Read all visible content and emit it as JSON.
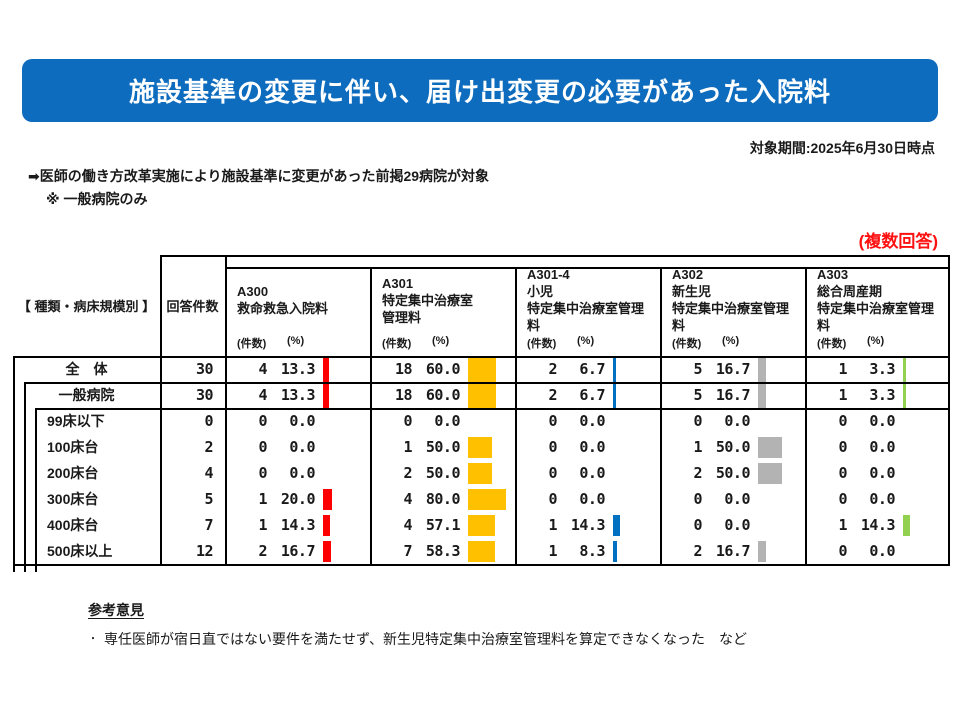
{
  "title": "施設基準の変更に伴い、届け出変更の必要があった入院料",
  "period_note": "対象期間:2025年6月30日時点",
  "lead_note": "➡医師の働き方改革実施により施設基準に変更があった前掲29病院が対象",
  "lead_subnote": "※ 一般病院のみ",
  "multi_answer_note": "(複数回答)",
  "colors": {
    "banner_bg": "#0d6cbe",
    "banner_text": "#ffffff",
    "note_red": "#ff1111",
    "border": "#000000",
    "bar_red": "#ff0000",
    "bar_yellow": "#ffc000",
    "bar_blue": "#0070c0",
    "bar_gray": "#b3b3b3",
    "bar_green": "#92d050"
  },
  "table": {
    "row_header_label": "【 種類・病床規模別 】",
    "count_col_label": "回答件数",
    "unit_count": "(件数)",
    "unit_pct": "(%)",
    "columns": [
      {
        "code": "A300",
        "name_lines": [
          "A300",
          "救命救急入院料"
        ],
        "bar_color": "#ff0000"
      },
      {
        "code": "A301",
        "name_lines": [
          "A301",
          "特定集中治療室",
          "管理料"
        ],
        "bar_color": "#ffc000"
      },
      {
        "code": "A301-4",
        "name_lines": [
          "A301-4",
          "小児",
          "特定集中治療室管理料"
        ],
        "bar_color": "#0070c0"
      },
      {
        "code": "A302",
        "name_lines": [
          "A302",
          "新生児",
          "特定集中治療室管理料"
        ],
        "bar_color": "#b3b3b3"
      },
      {
        "code": "A303",
        "name_lines": [
          "A303",
          "総合周産期",
          "特定集中治療室管理料"
        ],
        "bar_color": "#92d050"
      }
    ],
    "rows": [
      {
        "label": "全　体",
        "level": 0,
        "n": 30,
        "cells": [
          [
            4,
            13.3
          ],
          [
            18,
            60.0
          ],
          [
            2,
            6.7
          ],
          [
            5,
            16.7
          ],
          [
            1,
            3.3
          ]
        ]
      },
      {
        "label": "一般病院",
        "level": 1,
        "n": 30,
        "cells": [
          [
            4,
            13.3
          ],
          [
            18,
            60.0
          ],
          [
            2,
            6.7
          ],
          [
            5,
            16.7
          ],
          [
            1,
            3.3
          ]
        ]
      },
      {
        "label": "99床以下",
        "level": 2,
        "n": 0,
        "cells": [
          [
            0,
            0.0
          ],
          [
            0,
            0.0
          ],
          [
            0,
            0.0
          ],
          [
            0,
            0.0
          ],
          [
            0,
            0.0
          ]
        ]
      },
      {
        "label": "100床台",
        "level": 2,
        "n": 2,
        "cells": [
          [
            0,
            0.0
          ],
          [
            1,
            50.0
          ],
          [
            0,
            0.0
          ],
          [
            1,
            50.0
          ],
          [
            0,
            0.0
          ]
        ]
      },
      {
        "label": "200床台",
        "level": 2,
        "n": 4,
        "cells": [
          [
            0,
            0.0
          ],
          [
            2,
            50.0
          ],
          [
            0,
            0.0
          ],
          [
            2,
            50.0
          ],
          [
            0,
            0.0
          ]
        ]
      },
      {
        "label": "300床台",
        "level": 2,
        "n": 5,
        "cells": [
          [
            1,
            20.0
          ],
          [
            4,
            80.0
          ],
          [
            0,
            0.0
          ],
          [
            0,
            0.0
          ],
          [
            0,
            0.0
          ]
        ]
      },
      {
        "label": "400床台",
        "level": 2,
        "n": 7,
        "cells": [
          [
            1,
            14.3
          ],
          [
            4,
            57.1
          ],
          [
            1,
            14.3
          ],
          [
            0,
            0.0
          ],
          [
            1,
            14.3
          ]
        ]
      },
      {
        "label": "500床以上",
        "level": 2,
        "n": 12,
        "cells": [
          [
            2,
            16.7
          ],
          [
            7,
            58.3
          ],
          [
            1,
            8.3
          ],
          [
            2,
            16.7
          ],
          [
            0,
            0.0
          ]
        ]
      }
    ]
  },
  "chart_data": {
    "type": "table",
    "title": "施設基準の変更に伴い、届け出変更の必要があった入院料",
    "categories": [
      "全体",
      "一般病院",
      "99床以下",
      "100床台",
      "200床台",
      "300床台",
      "400床台",
      "500床以上"
    ],
    "respondent_counts": [
      30,
      30,
      0,
      2,
      4,
      5,
      7,
      12
    ],
    "series": [
      {
        "name": "A300 救命救急入院料",
        "counts": [
          4,
          4,
          0,
          0,
          0,
          1,
          1,
          2
        ],
        "percents": [
          13.3,
          13.3,
          0.0,
          0.0,
          0.0,
          20.0,
          14.3,
          16.7
        ]
      },
      {
        "name": "A301 特定集中治療室管理料",
        "counts": [
          18,
          18,
          0,
          1,
          2,
          4,
          4,
          7
        ],
        "percents": [
          60.0,
          60.0,
          0.0,
          50.0,
          50.0,
          80.0,
          57.1,
          58.3
        ]
      },
      {
        "name": "A301-4 小児特定集中治療室管理料",
        "counts": [
          2,
          2,
          0,
          0,
          0,
          0,
          1,
          1
        ],
        "percents": [
          6.7,
          6.7,
          0.0,
          0.0,
          0.0,
          0.0,
          14.3,
          8.3
        ]
      },
      {
        "name": "A302 新生児特定集中治療室管理料",
        "counts": [
          5,
          5,
          0,
          1,
          2,
          0,
          0,
          2
        ],
        "percents": [
          16.7,
          16.7,
          0.0,
          50.0,
          50.0,
          0.0,
          0.0,
          16.7
        ]
      },
      {
        "name": "A303 総合周産期特定集中治療室管理料",
        "counts": [
          1,
          1,
          0,
          0,
          0,
          0,
          1,
          0
        ],
        "percents": [
          3.3,
          3.3,
          0.0,
          0.0,
          0.0,
          0.0,
          14.3,
          0.0
        ]
      }
    ]
  },
  "footer": {
    "heading": "参考意見",
    "marker": "・",
    "bullet": "専任医師が宿日直ではない要件を満たせず、新生児特定集中治療室管理料を算定できなくなった　など"
  }
}
